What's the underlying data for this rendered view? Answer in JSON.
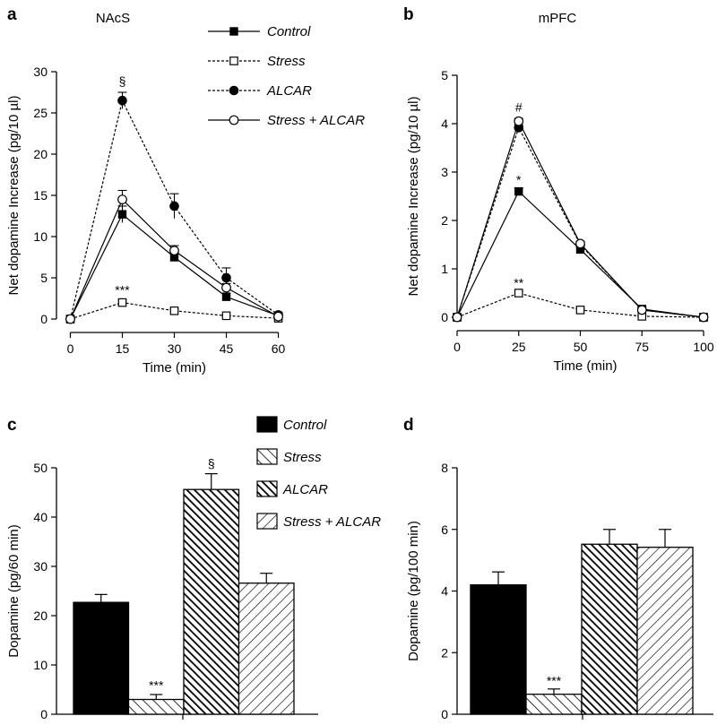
{
  "legend_top": [
    {
      "name": "Control",
      "marker": "square-filled",
      "dash": "solid"
    },
    {
      "name": "Stress",
      "marker": "square-open",
      "dash": "dotted"
    },
    {
      "name": "ALCAR",
      "marker": "circle-filled",
      "dash": "dotted"
    },
    {
      "name": "Stress + ALCAR",
      "marker": "circle-open",
      "dash": "solid"
    }
  ],
  "legend_bottom": [
    {
      "name": "Control",
      "fill": "solid"
    },
    {
      "name": "Stress",
      "fill": "hatch-sparse"
    },
    {
      "name": "ALCAR",
      "fill": "hatch-dense"
    },
    {
      "name": "Stress + ALCAR",
      "fill": "hatch-diagonal"
    }
  ],
  "chart_data": [
    {
      "panel": "a",
      "type": "line",
      "title": "NAcS",
      "xlabel": "Time (min)",
      "ylabel": "Net dopamine Increase (pg/10 µl)",
      "x": [
        0,
        15,
        30,
        45,
        60
      ],
      "xticks": [
        0,
        15,
        30,
        45,
        60
      ],
      "xlim": [
        -4,
        64
      ],
      "ylim": [
        0,
        30
      ],
      "yticks": [
        0,
        5,
        10,
        15,
        20,
        25,
        30
      ],
      "series": [
        {
          "name": "Control",
          "values": [
            0,
            12.7,
            7.5,
            2.7,
            0.4
          ],
          "errors": [
            0,
            1.0,
            0.5,
            0.4,
            0.2
          ]
        },
        {
          "name": "Stress",
          "values": [
            0,
            2.0,
            1.0,
            0.4,
            0.1
          ],
          "errors": [
            0,
            0.3,
            0.2,
            0.1,
            0.1
          ]
        },
        {
          "name": "ALCAR",
          "values": [
            0,
            26.5,
            13.7,
            5.0,
            0.5
          ],
          "errors": [
            0,
            1.0,
            1.5,
            1.2,
            0.3
          ]
        },
        {
          "name": "Stress + ALCAR",
          "values": [
            0,
            14.5,
            8.3,
            3.8,
            0.3
          ],
          "errors": [
            0,
            1.1,
            0.6,
            0.5,
            0.2
          ]
        }
      ],
      "annotations": [
        {
          "text": "§",
          "x": 15,
          "y": 28.3
        },
        {
          "text": "***",
          "x": 15,
          "y": 3.0
        }
      ]
    },
    {
      "panel": "b",
      "type": "line",
      "title": "mPFC",
      "xlabel": "Time (min)",
      "ylabel": "Net dopamine Increase (pg/10 µl)",
      "x": [
        0,
        25,
        50,
        75,
        100
      ],
      "xticks": [
        0,
        25,
        50,
        75,
        100
      ],
      "xlim": [
        0,
        104
      ],
      "ylim": [
        0,
        5
      ],
      "yticks": [
        0,
        1,
        2,
        3,
        4,
        5
      ],
      "series": [
        {
          "name": "Control",
          "values": [
            0,
            2.6,
            1.4,
            0.17,
            0
          ],
          "errors": [
            0,
            0.07,
            0.05,
            0.05,
            0
          ]
        },
        {
          "name": "Stress",
          "values": [
            0,
            0.5,
            0.15,
            0.02,
            0
          ],
          "errors": [
            0,
            0.04,
            0.03,
            0.02,
            0
          ]
        },
        {
          "name": "ALCAR",
          "values": [
            0,
            3.92,
            1.5,
            0.15,
            0
          ],
          "errors": [
            0,
            0.06,
            0.05,
            0.04,
            0
          ]
        },
        {
          "name": "Stress + ALCAR",
          "values": [
            0,
            4.05,
            1.52,
            0.15,
            0
          ],
          "errors": [
            0,
            0.06,
            0.05,
            0.04,
            0
          ]
        }
      ],
      "annotations": [
        {
          "text": "#",
          "x": 25,
          "y": 4.25
        },
        {
          "text": "*",
          "x": 25,
          "y": 2.75
        },
        {
          "text": "**",
          "x": 25,
          "y": 0.62
        }
      ]
    },
    {
      "panel": "c",
      "type": "bar",
      "title": "",
      "xlabel": "",
      "ylabel": "Dopamine (pg/60 min)",
      "categories": [
        "Control",
        "Stress",
        "ALCAR",
        "Stress + ALCAR"
      ],
      "values": [
        22.7,
        3.0,
        45.6,
        26.6
      ],
      "errors": [
        1.6,
        1.0,
        3.2,
        2.0
      ],
      "ylim": [
        0,
        50
      ],
      "yticks": [
        0,
        10,
        20,
        30,
        40,
        50
      ],
      "annotations": [
        {
          "text": "***",
          "category": "Stress",
          "y": 5.0
        },
        {
          "text": "§",
          "category": "ALCAR",
          "y": 50.0
        }
      ]
    },
    {
      "panel": "d",
      "type": "bar",
      "title": "",
      "xlabel": "",
      "ylabel": "Dopamine (pg/100 min)",
      "categories": [
        "Control",
        "Stress",
        "ALCAR",
        "Stress + ALCAR"
      ],
      "values": [
        4.2,
        0.65,
        5.52,
        5.42
      ],
      "errors": [
        0.42,
        0.17,
        0.48,
        0.58
      ],
      "ylim": [
        0,
        8
      ],
      "yticks": [
        0,
        2,
        4,
        6,
        8
      ],
      "annotations": [
        {
          "text": "***",
          "category": "Stress",
          "y": 0.95
        }
      ]
    }
  ]
}
